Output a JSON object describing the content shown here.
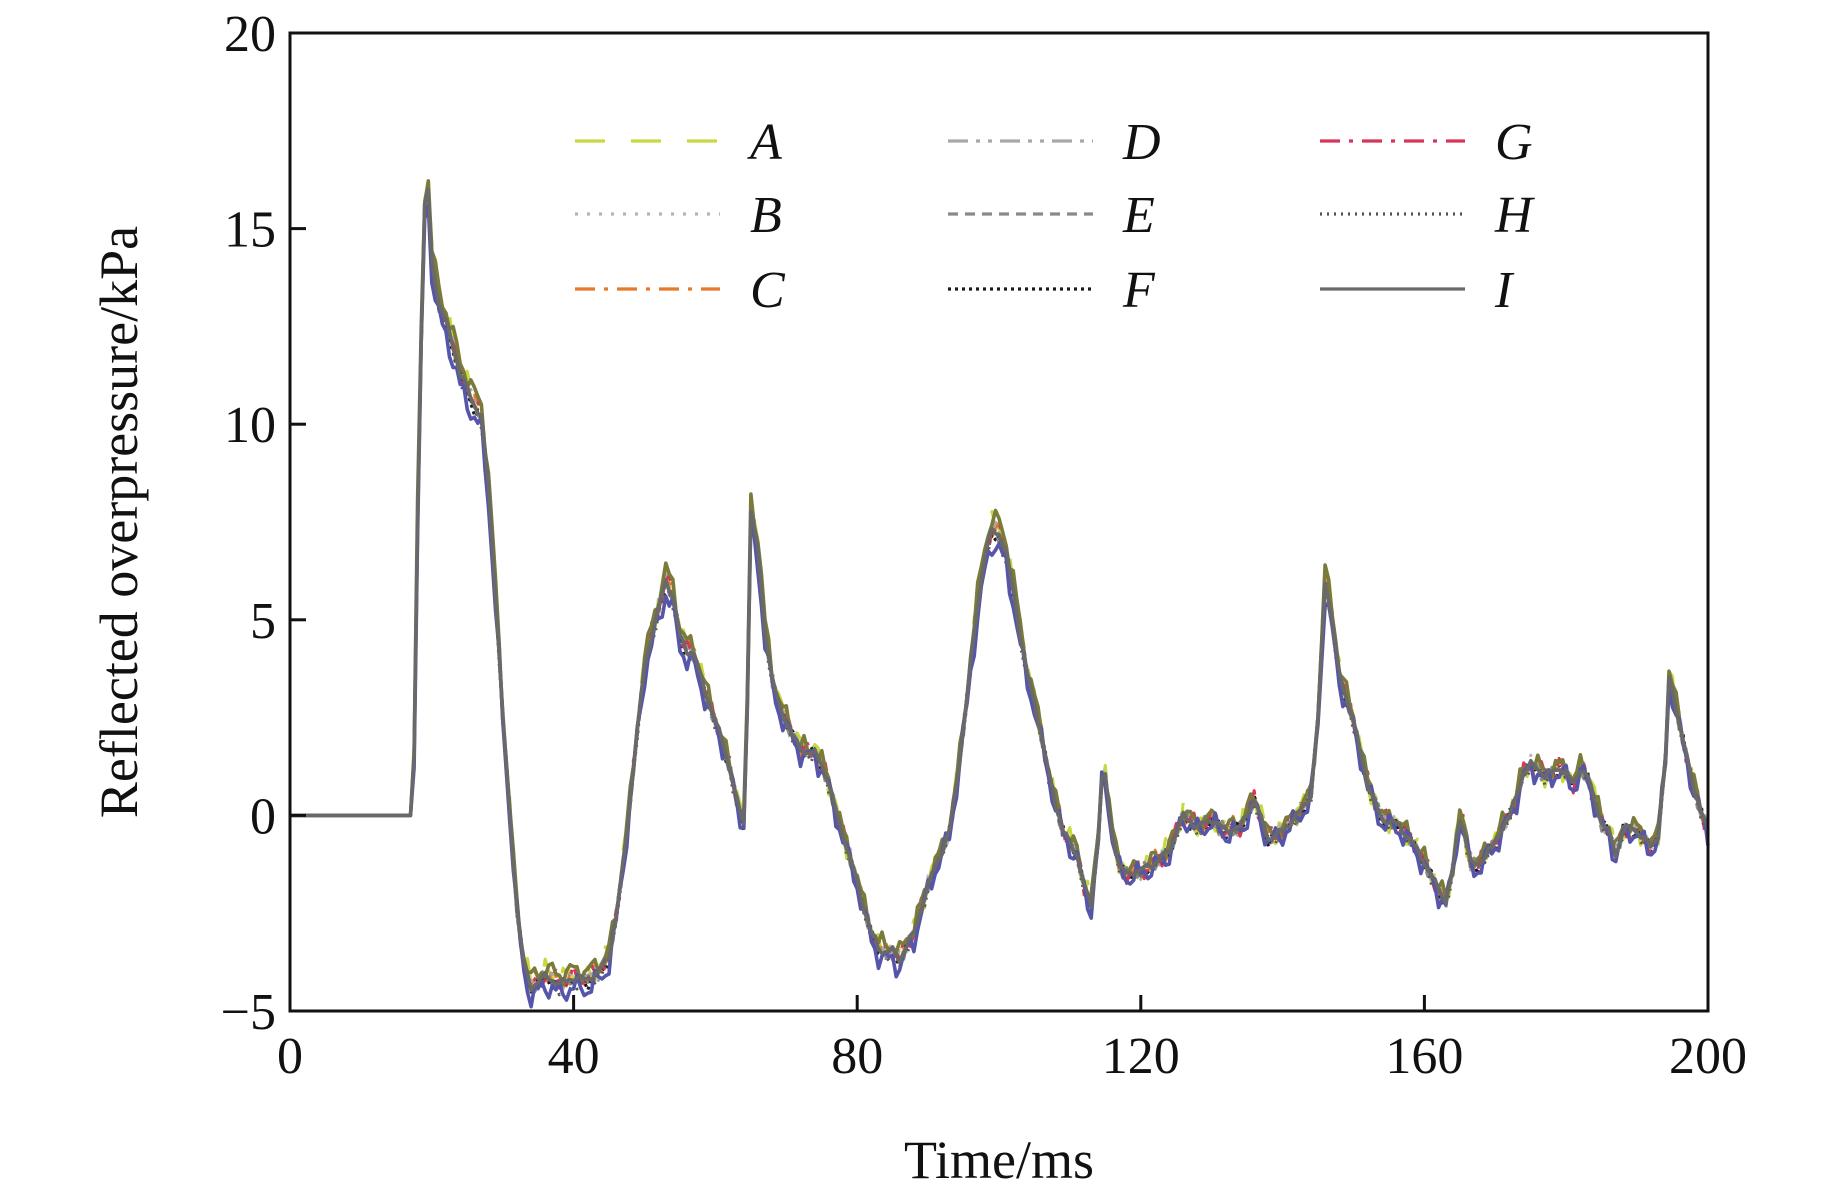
{
  "chart_data": {
    "type": "line",
    "title": "",
    "xlabel": "Time/ms",
    "ylabel": "Reflected overpressure/kPa",
    "xlim": [
      0,
      200
    ],
    "ylim": [
      -5,
      20
    ],
    "xticks": [
      0,
      40,
      80,
      120,
      160,
      200
    ],
    "yticks": [
      -5,
      0,
      5,
      10,
      15,
      20
    ],
    "xtick_labels": [
      "0",
      "40",
      "80",
      "120",
      "160",
      "200"
    ],
    "ytick_labels": [
      "−5",
      "0",
      "5",
      "10",
      "15",
      "20"
    ],
    "grid": false,
    "legend_position": "top",
    "base_curve": [
      [
        0,
        0
      ],
      [
        17,
        0
      ],
      [
        17.5,
        1.5
      ],
      [
        18.2,
        10
      ],
      [
        19.2,
        17
      ],
      [
        20,
        14.2
      ],
      [
        21,
        13.1
      ],
      [
        22,
        12.6
      ],
      [
        23,
        12
      ],
      [
        24,
        11.3
      ],
      [
        25,
        10.9
      ],
      [
        26,
        10.5
      ],
      [
        27,
        10.2
      ],
      [
        28,
        8.4
      ],
      [
        29,
        5.6
      ],
      [
        30,
        2.6
      ],
      [
        31,
        0.1
      ],
      [
        32,
        -2.4
      ],
      [
        33,
        -3.8
      ],
      [
        34,
        -4.4
      ],
      [
        36,
        -4.1
      ],
      [
        38,
        -4.3
      ],
      [
        40,
        -4.15
      ],
      [
        42,
        -4.2
      ],
      [
        44,
        -3.9
      ],
      [
        45,
        -3.6
      ],
      [
        46,
        -2.6
      ],
      [
        47,
        -1.2
      ],
      [
        48,
        0.4
      ],
      [
        49,
        2.2
      ],
      [
        50,
        3.8
      ],
      [
        51,
        4.6
      ],
      [
        52,
        5.3
      ],
      [
        53,
        6
      ],
      [
        54,
        5.6
      ],
      [
        55,
        4.6
      ],
      [
        56,
        4.2
      ],
      [
        57,
        4.1
      ],
      [
        58,
        3.5
      ],
      [
        59,
        2.9
      ],
      [
        60,
        2.4
      ],
      [
        61,
        1.9
      ],
      [
        62,
        1.2
      ],
      [
        63,
        0.4
      ],
      [
        64,
        -0.2
      ],
      [
        64.6,
        3.5
      ],
      [
        65,
        7.8
      ],
      [
        66,
        6.8
      ],
      [
        67,
        4.7
      ],
      [
        68,
        3.5
      ],
      [
        69,
        2.8
      ],
      [
        70,
        2.4
      ],
      [
        71,
        2
      ],
      [
        72,
        1.7
      ],
      [
        73,
        1.6
      ],
      [
        74,
        1.6
      ],
      [
        75,
        1.3
      ],
      [
        76,
        0.8
      ],
      [
        77,
        0.1
      ],
      [
        78,
        -0.5
      ],
      [
        79,
        -1.1
      ],
      [
        80,
        -1.7
      ],
      [
        81,
        -2.4
      ],
      [
        82,
        -3
      ],
      [
        83,
        -3.4
      ],
      [
        84,
        -3.5
      ],
      [
        85,
        -3.45
      ],
      [
        86,
        -3.7
      ],
      [
        87,
        -3.3
      ],
      [
        88,
        -3
      ],
      [
        89,
        -2.4
      ],
      [
        90,
        -1.8
      ],
      [
        91,
        -1.3
      ],
      [
        92,
        -0.9
      ],
      [
        93,
        -0.4
      ],
      [
        94,
        0.8
      ],
      [
        95,
        2.2
      ],
      [
        96,
        3.9
      ],
      [
        97,
        5.4
      ],
      [
        98,
        6.6
      ],
      [
        99,
        7.3
      ],
      [
        100,
        7.2
      ],
      [
        101,
        6.7
      ],
      [
        102,
        5.8
      ],
      [
        103,
        4.6
      ],
      [
        104,
        3.6
      ],
      [
        105,
        2.9
      ],
      [
        106,
        2
      ],
      [
        107,
        1.1
      ],
      [
        108,
        0.3
      ],
      [
        109,
        -0.4
      ],
      [
        110,
        -0.7
      ],
      [
        111,
        -1
      ],
      [
        112,
        -1.8
      ],
      [
        113,
        -2.3
      ],
      [
        114,
        -0.6
      ],
      [
        114.6,
        1.2
      ],
      [
        115,
        1
      ],
      [
        116,
        -0.5
      ],
      [
        117,
        -1.3
      ],
      [
        118,
        -1.5
      ],
      [
        120,
        -1.4
      ],
      [
        122,
        -1.2
      ],
      [
        124,
        -0.9
      ],
      [
        126,
        0
      ],
      [
        128,
        -0.3
      ],
      [
        130,
        -0.1
      ],
      [
        132,
        -0.4
      ],
      [
        134,
        -0.3
      ],
      [
        136,
        0.4
      ],
      [
        138,
        -0.6
      ],
      [
        140,
        -0.4
      ],
      [
        142,
        0
      ],
      [
        144,
        0.5
      ],
      [
        145,
        2.5
      ],
      [
        146,
        6
      ],
      [
        147,
        5
      ],
      [
        148,
        3.6
      ],
      [
        149,
        3
      ],
      [
        150,
        2.4
      ],
      [
        151,
        1.6
      ],
      [
        152,
        0.8
      ],
      [
        154,
        -0.1
      ],
      [
        156,
        -0.2
      ],
      [
        158,
        -0.6
      ],
      [
        160,
        -1.2
      ],
      [
        162,
        -1.9
      ],
      [
        163,
        -2.2
      ],
      [
        164,
        -1.4
      ],
      [
        164.8,
        -0.1
      ],
      [
        165.5,
        -0.3
      ],
      [
        166.5,
        -1.2
      ],
      [
        167.5,
        -1.3
      ],
      [
        169,
        -0.9
      ],
      [
        170,
        -0.7
      ],
      [
        171,
        -0.3
      ],
      [
        172,
        0
      ],
      [
        173,
        0.5
      ],
      [
        174,
        1.1
      ],
      [
        175,
        1.3
      ],
      [
        176,
        1.2
      ],
      [
        177,
        1
      ],
      [
        178,
        1.1
      ],
      [
        179,
        1.2
      ],
      [
        180,
        1.1
      ],
      [
        181,
        0.8
      ],
      [
        182,
        1.2
      ],
      [
        183,
        1
      ],
      [
        184,
        0.4
      ],
      [
        185,
        -0.2
      ],
      [
        186,
        -0.4
      ],
      [
        187,
        -1
      ],
      [
        188,
        -0.4
      ],
      [
        189,
        -0.3
      ],
      [
        190,
        -0.4
      ],
      [
        191,
        -0.6
      ],
      [
        192,
        -0.8
      ],
      [
        193,
        -0.5
      ],
      [
        194,
        1.5
      ],
      [
        194.5,
        3.5
      ],
      [
        195,
        3.2
      ],
      [
        196,
        2.3
      ],
      [
        197,
        1.5
      ],
      [
        198,
        0.7
      ],
      [
        199,
        0.1
      ],
      [
        200,
        -0.4
      ]
    ],
    "series": [
      {
        "name": "A",
        "color": "#c8d940",
        "dash": "long-dash",
        "offset": 0.15,
        "noise": 0.35
      },
      {
        "name": "B",
        "color": "#b4b4b4",
        "dash": "dot",
        "offset": 0.05,
        "noise": 0.25
      },
      {
        "name": "C",
        "color": "#e8782a",
        "dash": "dash-dot",
        "offset": 0.1,
        "noise": 0.3
      },
      {
        "name": "D",
        "color": "#a8a8a8",
        "dash": "dash-dot-dot",
        "offset": 0.0,
        "noise": 0.25
      },
      {
        "name": "E",
        "color": "#8a8a8a",
        "dash": "short-dash",
        "offset": -0.05,
        "noise": 0.2
      },
      {
        "name": "F",
        "color": "#1a1a1a",
        "dash": "dense-dot",
        "offset": -0.1,
        "noise": 0.2
      },
      {
        "name": "G",
        "color": "#d8355a",
        "dash": "dash-dot",
        "offset": 0.05,
        "noise": 0.3
      },
      {
        "name": "H",
        "color": "#555555",
        "dash": "fine-dot",
        "offset": -0.15,
        "noise": 0.2
      },
      {
        "name": "I",
        "color": "#696969",
        "dash": "solid",
        "offset": 0.0,
        "noise": 0.1
      },
      {
        "name": "",
        "color": "#5555aa",
        "dash": "solid",
        "offset": -0.35,
        "noise": 0.35
      },
      {
        "name": "",
        "color": "#7a7a3a",
        "dash": "solid",
        "offset": 0.3,
        "noise": 0.3
      }
    ]
  }
}
